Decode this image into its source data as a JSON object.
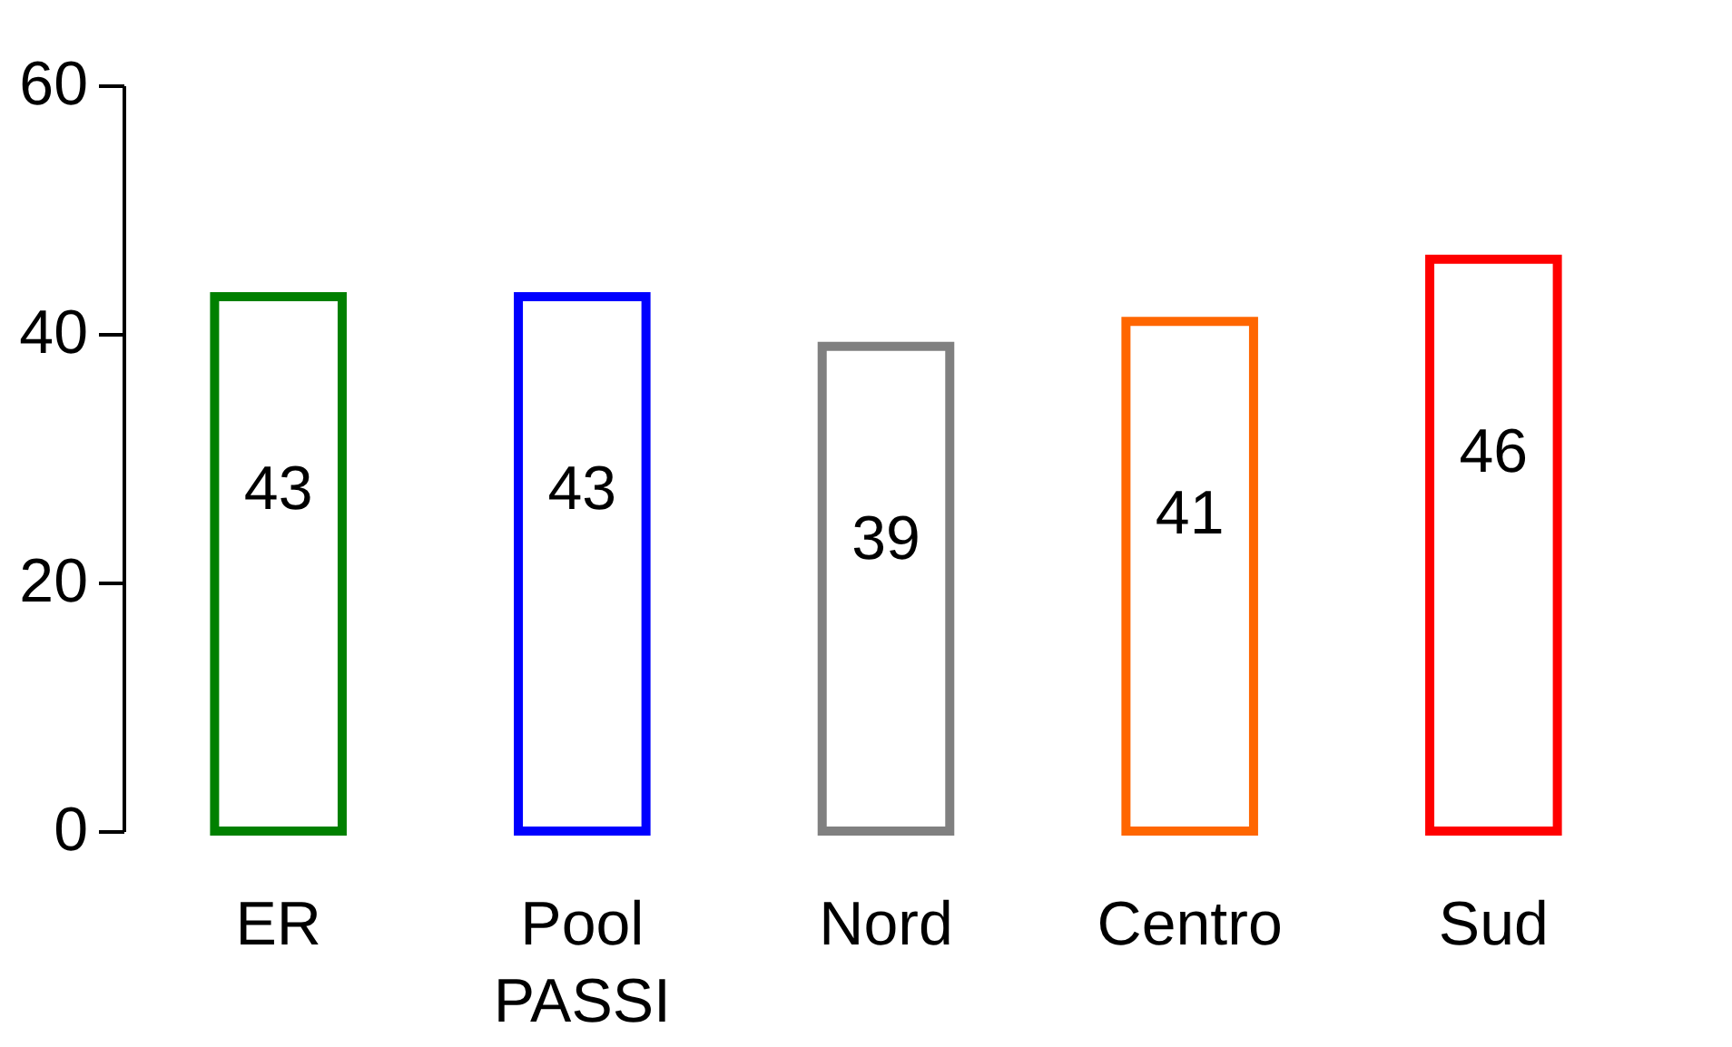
{
  "chart_data": {
    "type": "bar",
    "categories": [
      "ER",
      "Pool PASSI",
      "Nord",
      "Centro",
      "Sud"
    ],
    "values": [
      43,
      43,
      39,
      41,
      46
    ],
    "colors": [
      "#008000",
      "#0000ff",
      "#808080",
      "#ff6600",
      "#ff0000"
    ],
    "ylim": [
      0,
      60
    ],
    "yticks": [
      0,
      20,
      40,
      60
    ],
    "grid": false,
    "data_labels": true
  }
}
